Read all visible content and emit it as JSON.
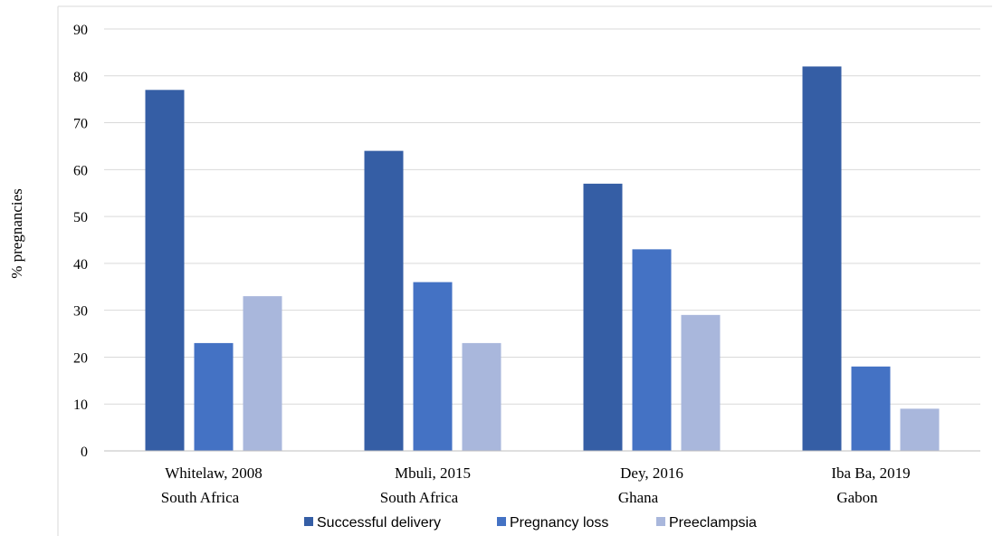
{
  "chart_data": {
    "type": "bar",
    "categories": [
      {
        "line1": "Whitelaw, 2008",
        "line2": "South Africa"
      },
      {
        "line1": "Mbuli, 2015",
        "line2": "South Africa"
      },
      {
        "line1": "Dey, 2016",
        "line2": "Ghana"
      },
      {
        "line1": "Iba Ba, 2019",
        "line2": "Gabon"
      }
    ],
    "series": [
      {
        "name": "Successful delivery",
        "color": "#355ea5",
        "values": [
          77,
          64,
          57,
          82
        ]
      },
      {
        "name": "Pregnancy loss",
        "color": "#4472c4",
        "values": [
          23,
          36,
          43,
          18
        ]
      },
      {
        "name": "Preeclampsia",
        "color": "#a9b7dc",
        "values": [
          33,
          23,
          29,
          9
        ]
      }
    ],
    "ylabel": "% pregnancies",
    "xlabel": "",
    "title": "",
    "ylim": [
      0,
      90
    ],
    "yticks": [
      0,
      10,
      20,
      30,
      40,
      50,
      60,
      70,
      80,
      90
    ],
    "grid": true,
    "legend_position": "bottom"
  }
}
